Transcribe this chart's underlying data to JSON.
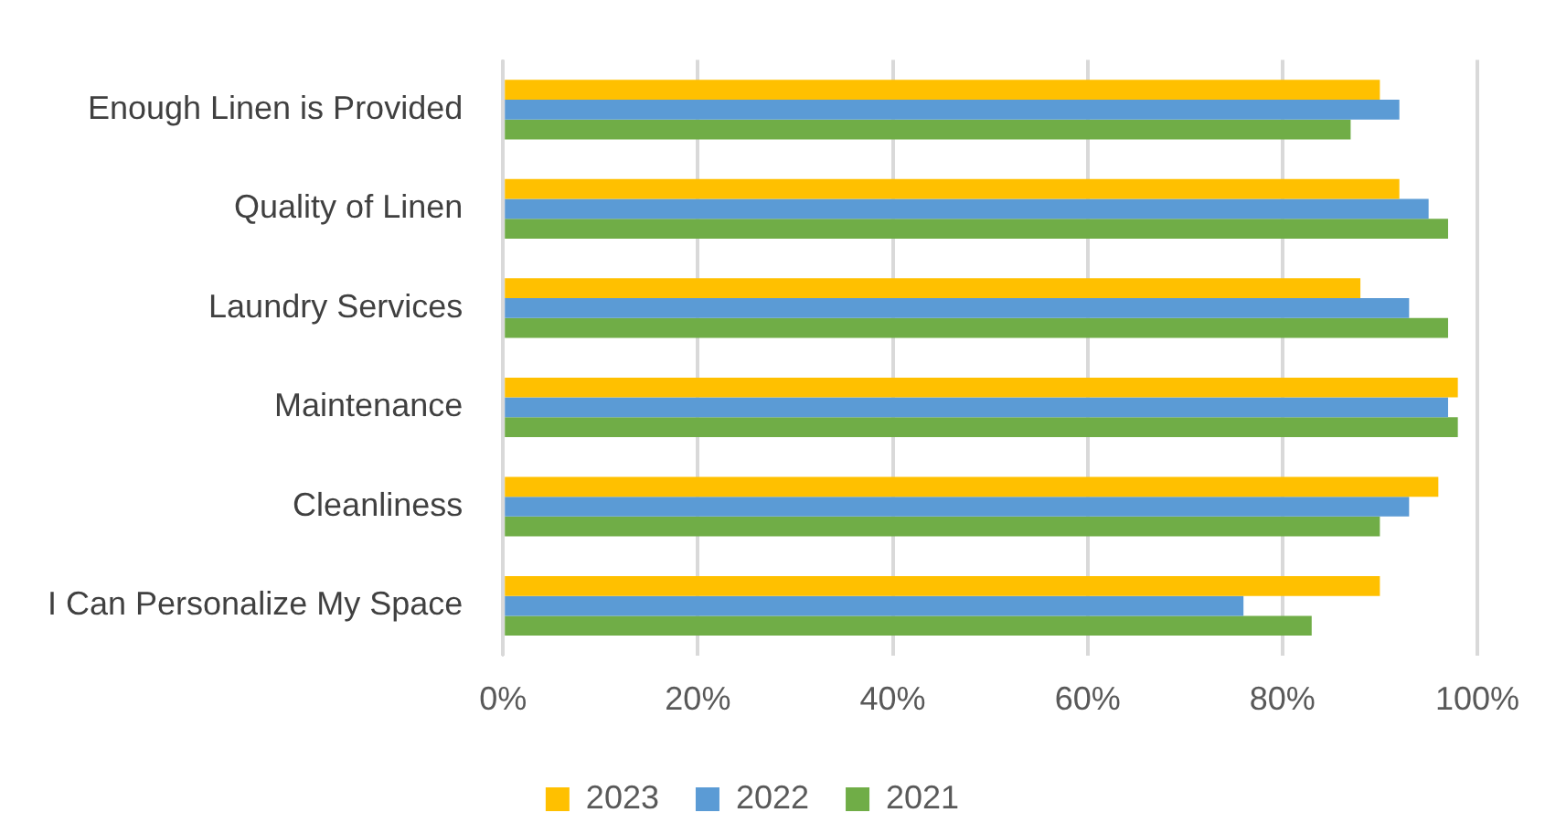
{
  "chart_data": {
    "type": "bar",
    "orientation": "horizontal",
    "categories": [
      "Enough Linen is Provided",
      "Quality of Linen",
      "Laundry Services",
      "Maintenance",
      "Cleanliness",
      "I Can Personalize My Space"
    ],
    "series": [
      {
        "name": "2023",
        "color": "#ffc000",
        "values": [
          90,
          92,
          88,
          98,
          96,
          90
        ]
      },
      {
        "name": "2022",
        "color": "#5b9bd5",
        "values": [
          92,
          95,
          93,
          97,
          93,
          76
        ]
      },
      {
        "name": "2021",
        "color": "#70ad47",
        "values": [
          87,
          97,
          97,
          98,
          90,
          83
        ]
      }
    ],
    "xlim": [
      0,
      100
    ],
    "xticks": [
      {
        "value": 0,
        "label": "0%"
      },
      {
        "value": 20,
        "label": "20%"
      },
      {
        "value": 40,
        "label": "40%"
      },
      {
        "value": 60,
        "label": "60%"
      },
      {
        "value": 80,
        "label": "80%"
      },
      {
        "value": 100,
        "label": "100%"
      }
    ],
    "grid": "x",
    "legend": "bottom"
  }
}
